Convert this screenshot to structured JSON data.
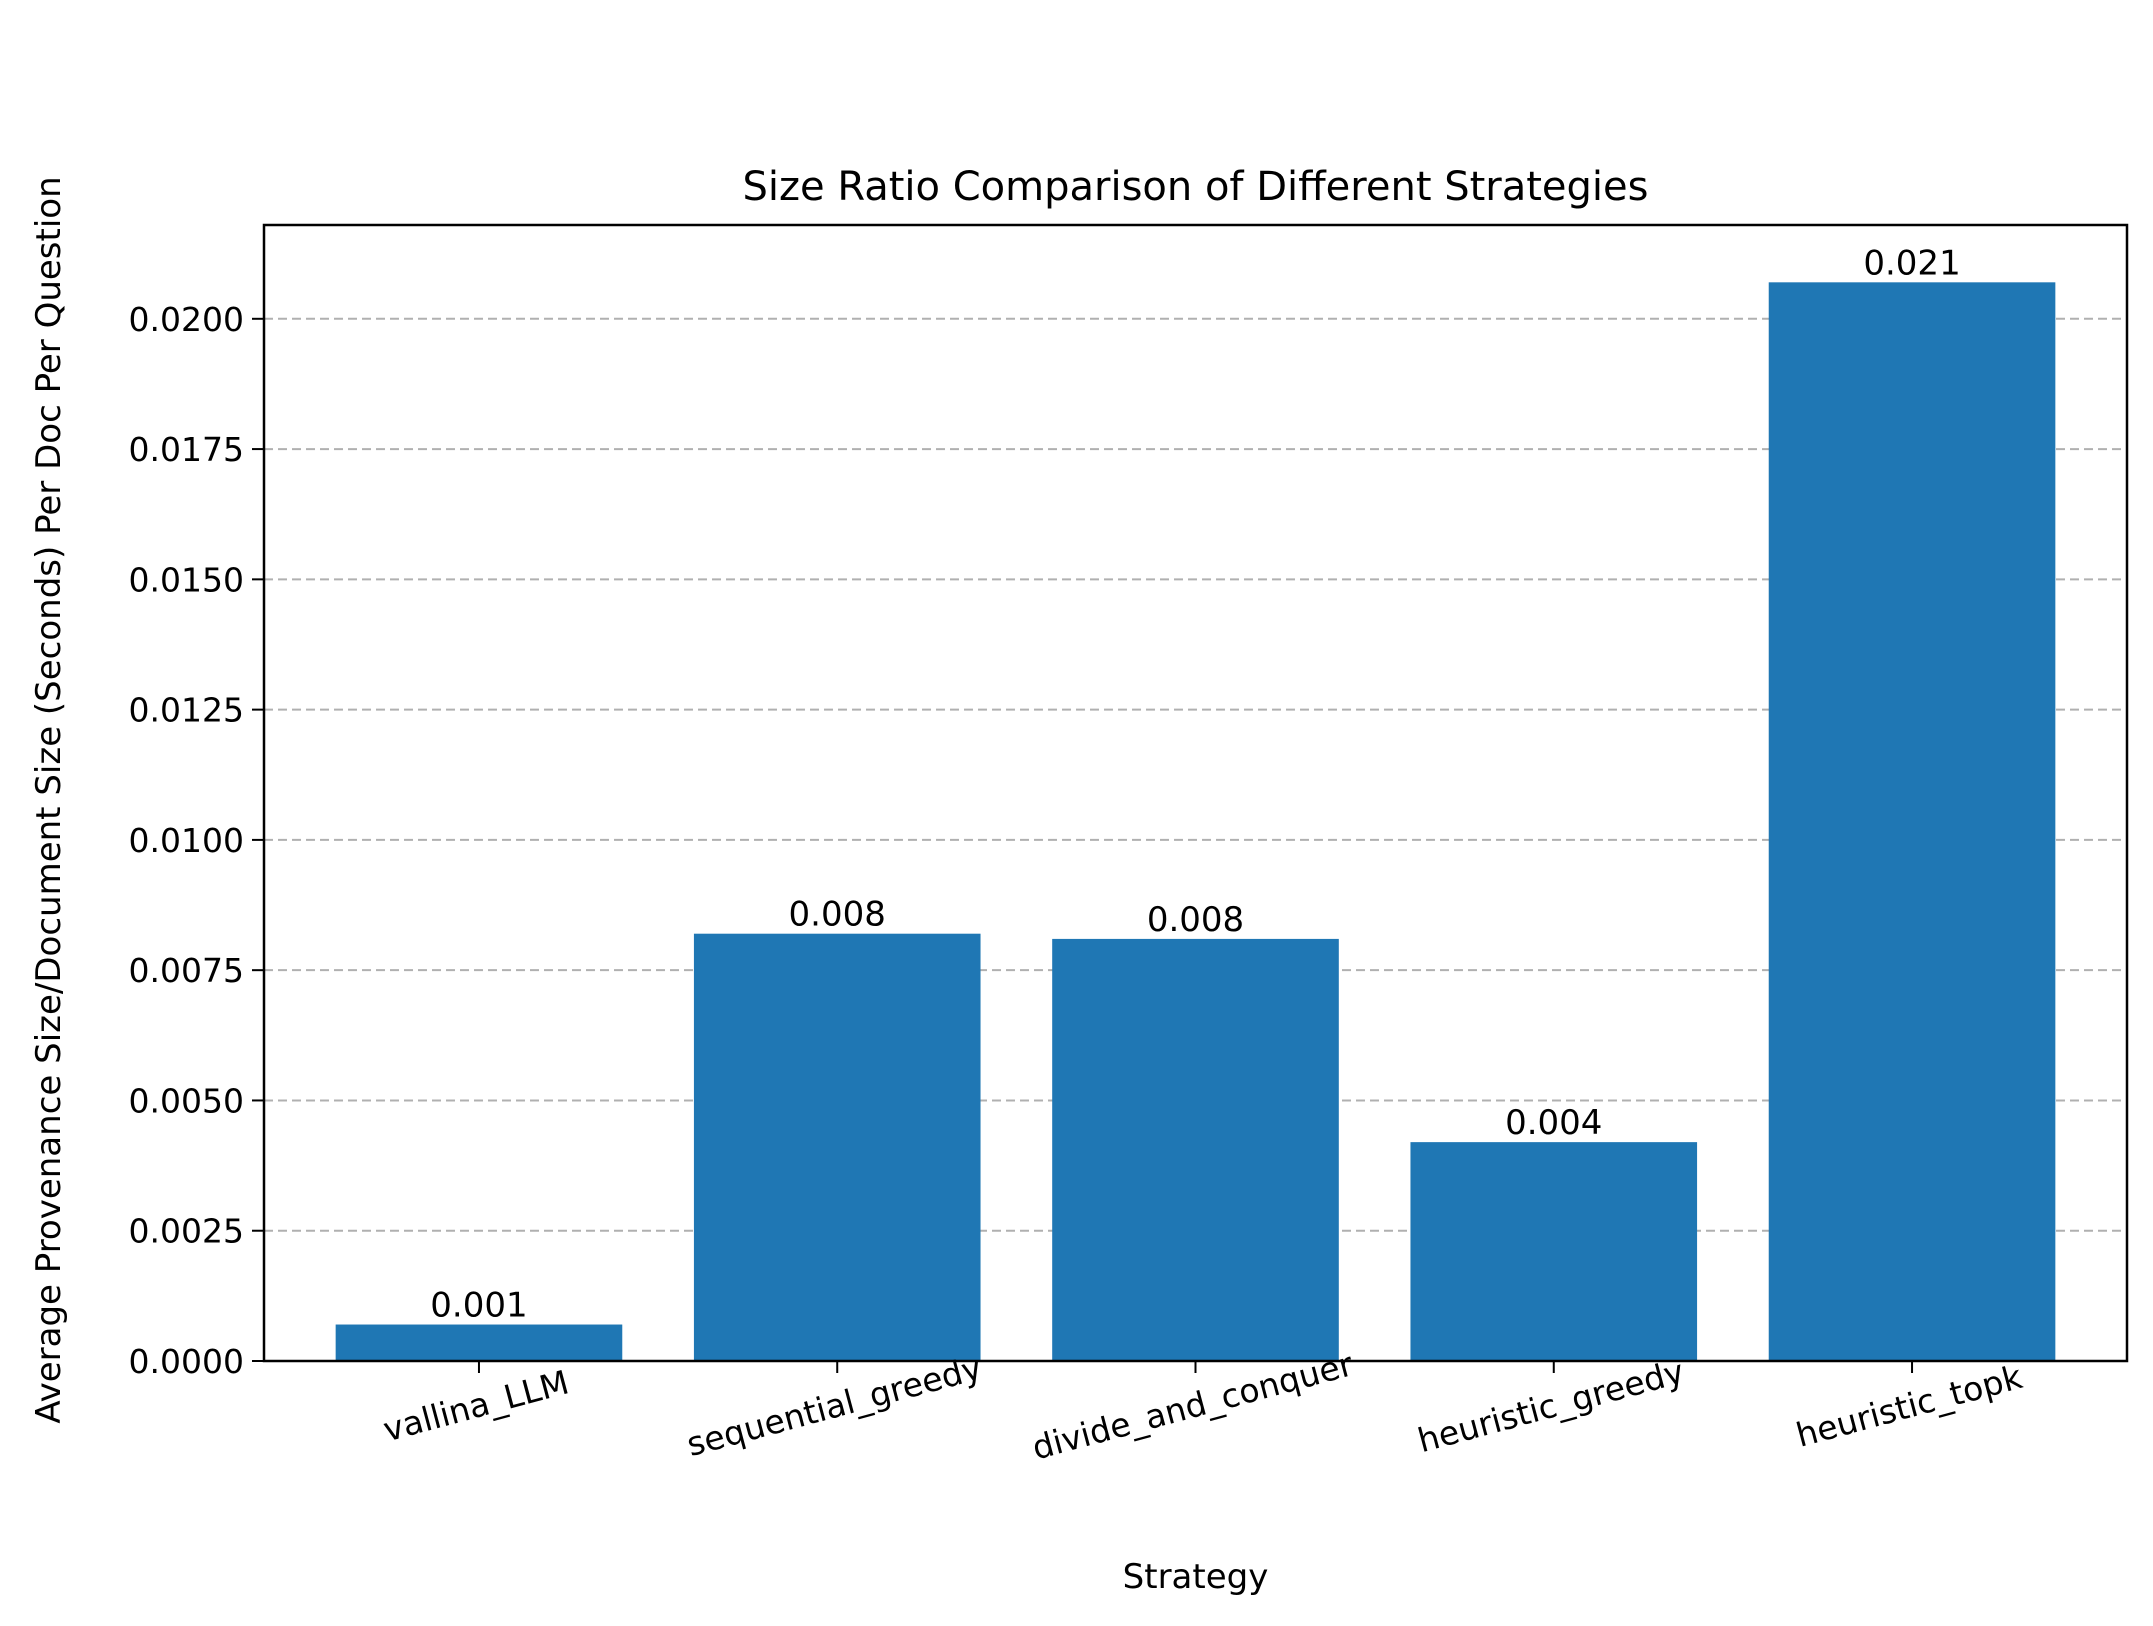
{
  "chart_data": {
    "type": "bar",
    "title": "Size Ratio Comparison of Different Strategies",
    "xlabel": "Strategy",
    "ylabel": "Average Provenance Size/Document Size (Seconds) Per Doc Per Question",
    "categories": [
      "vallina_LLM",
      "sequential_greedy",
      "divide_and_conquer",
      "heuristic_greedy",
      "heuristic_topk"
    ],
    "values": [
      0.0007,
      0.0082,
      0.0081,
      0.0042,
      0.0207
    ],
    "bar_labels": [
      "0.001",
      "0.008",
      "0.008",
      "0.004",
      "0.021"
    ],
    "ylim": [
      0,
      0.0218
    ],
    "yticks": [
      0,
      0.0025,
      0.005,
      0.0075,
      0.01,
      0.0125,
      0.015,
      0.0175,
      0.02
    ],
    "ytick_labels": [
      "0.0000",
      "0.0025",
      "0.0050",
      "0.0075",
      "0.0100",
      "0.0125",
      "0.0150",
      "0.0175",
      "0.0200"
    ],
    "grid": "y-dashed",
    "bar_color": "#1f77b4",
    "grid_color": "#b0b0b0"
  }
}
